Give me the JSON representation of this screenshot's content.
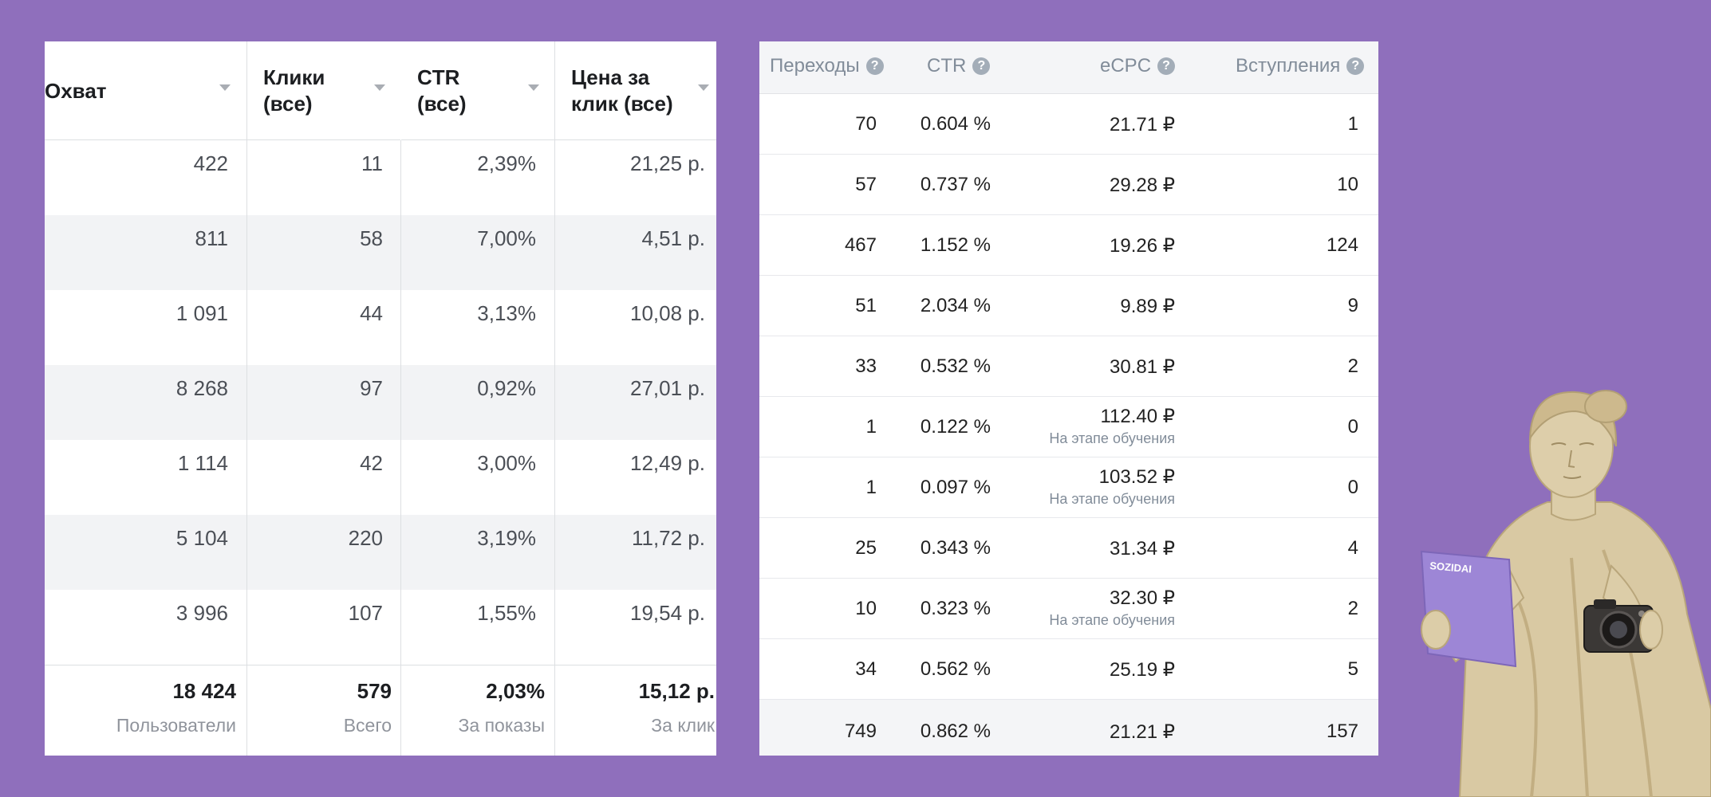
{
  "left_table": {
    "columns": [
      {
        "label": "Охват"
      },
      {
        "label": "Клики\n(все)"
      },
      {
        "label": "CTR\n(все)"
      },
      {
        "label": "Цена за\nклик (все)"
      }
    ],
    "rows": [
      [
        "422",
        "11",
        "2,39%",
        "21,25 р."
      ],
      [
        "811",
        "58",
        "7,00%",
        "4,51 р."
      ],
      [
        "1 091",
        "44",
        "3,13%",
        "10,08 р."
      ],
      [
        "8 268",
        "97",
        "0,92%",
        "27,01 р."
      ],
      [
        "1 114",
        "42",
        "3,00%",
        "12,49 р."
      ],
      [
        "5 104",
        "220",
        "3,19%",
        "11,72 р."
      ],
      [
        "3 996",
        "107",
        "1,55%",
        "19,54 р."
      ]
    ],
    "totals": [
      {
        "value": "18 424",
        "label": "Пользователи"
      },
      {
        "value": "579",
        "label": "Всего"
      },
      {
        "value": "2,03%",
        "label": "За показы"
      },
      {
        "value": "15,12 р.",
        "label": "За клик"
      }
    ]
  },
  "right_table": {
    "columns": [
      {
        "label": "Переходы"
      },
      {
        "label": "CTR"
      },
      {
        "label": "eCPC"
      },
      {
        "label": "Вступления"
      }
    ],
    "rows": [
      {
        "clicks": "70",
        "ctr": "0.604 %",
        "ecpc": "21.71 ₽",
        "note": "",
        "joins": "1"
      },
      {
        "clicks": "57",
        "ctr": "0.737 %",
        "ecpc": "29.28 ₽",
        "note": "",
        "joins": "10"
      },
      {
        "clicks": "467",
        "ctr": "1.152 %",
        "ecpc": "19.26 ₽",
        "note": "",
        "joins": "124"
      },
      {
        "clicks": "51",
        "ctr": "2.034 %",
        "ecpc": "9.89 ₽",
        "note": "",
        "joins": "9"
      },
      {
        "clicks": "33",
        "ctr": "0.532 %",
        "ecpc": "30.81 ₽",
        "note": "",
        "joins": "2"
      },
      {
        "clicks": "1",
        "ctr": "0.122 %",
        "ecpc": "112.40 ₽",
        "note": "На этапе обучения",
        "joins": "0"
      },
      {
        "clicks": "1",
        "ctr": "0.097 %",
        "ecpc": "103.52 ₽",
        "note": "На этапе обучения",
        "joins": "0"
      },
      {
        "clicks": "25",
        "ctr": "0.343 %",
        "ecpc": "31.34 ₽",
        "note": "",
        "joins": "4"
      },
      {
        "clicks": "10",
        "ctr": "0.323 %",
        "ecpc": "32.30 ₽",
        "note": "На этапе обучения",
        "joins": "2"
      },
      {
        "clicks": "34",
        "ctr": "0.562 %",
        "ecpc": "25.19 ₽",
        "note": "",
        "joins": "5"
      }
    ],
    "total": {
      "clicks": "749",
      "ctr": "0.862 %",
      "ecpc": "21.21 ₽",
      "joins": "157"
    }
  },
  "illustration": {
    "paper_logo": "SOZIDAI"
  },
  "colors": {
    "background": "#8f6fbc",
    "paper": "#9d86d6",
    "statue": "#d9c9a3"
  }
}
